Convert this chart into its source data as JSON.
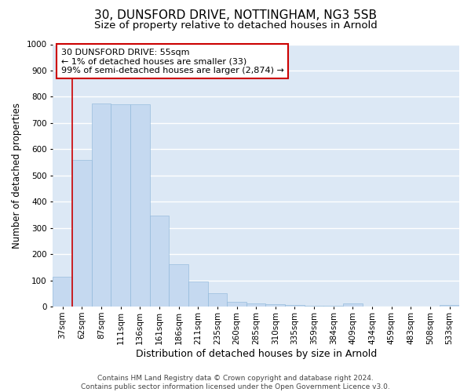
{
  "title": "30, DUNSFORD DRIVE, NOTTINGHAM, NG3 5SB",
  "subtitle": "Size of property relative to detached houses in Arnold",
  "xlabel": "Distribution of detached houses by size in Arnold",
  "ylabel": "Number of detached properties",
  "categories": [
    "37sqm",
    "62sqm",
    "87sqm",
    "111sqm",
    "136sqm",
    "161sqm",
    "186sqm",
    "211sqm",
    "235sqm",
    "260sqm",
    "285sqm",
    "310sqm",
    "335sqm",
    "359sqm",
    "384sqm",
    "409sqm",
    "434sqm",
    "459sqm",
    "483sqm",
    "508sqm",
    "533sqm"
  ],
  "values": [
    115,
    560,
    775,
    770,
    770,
    347,
    163,
    97,
    53,
    20,
    13,
    10,
    8,
    5,
    5,
    12,
    2,
    2,
    2,
    2,
    8
  ],
  "bar_color": "#c5d9f0",
  "bar_edge_color": "#c5d9f0",
  "background_color": "#dce8f5",
  "grid_color": "#ffffff",
  "annotation_box_text": "30 DUNSFORD DRIVE: 55sqm\n← 1% of detached houses are smaller (33)\n99% of semi-detached houses are larger (2,874) →",
  "annotation_box_color": "#ffffff",
  "annotation_box_edge_color": "#cc0000",
  "vline_color": "#cc0000",
  "vline_x": 0.5,
  "ylim": [
    0,
    1000
  ],
  "yticks": [
    0,
    100,
    200,
    300,
    400,
    500,
    600,
    700,
    800,
    900,
    1000
  ],
  "footnote": "Contains HM Land Registry data © Crown copyright and database right 2024.\nContains public sector information licensed under the Open Government Licence v3.0.",
  "fig_bg": "#ffffff",
  "title_fontsize": 11,
  "subtitle_fontsize": 9.5,
  "xlabel_fontsize": 9,
  "ylabel_fontsize": 8.5,
  "tick_fontsize": 7.5,
  "annotation_fontsize": 8,
  "footnote_fontsize": 6.5
}
